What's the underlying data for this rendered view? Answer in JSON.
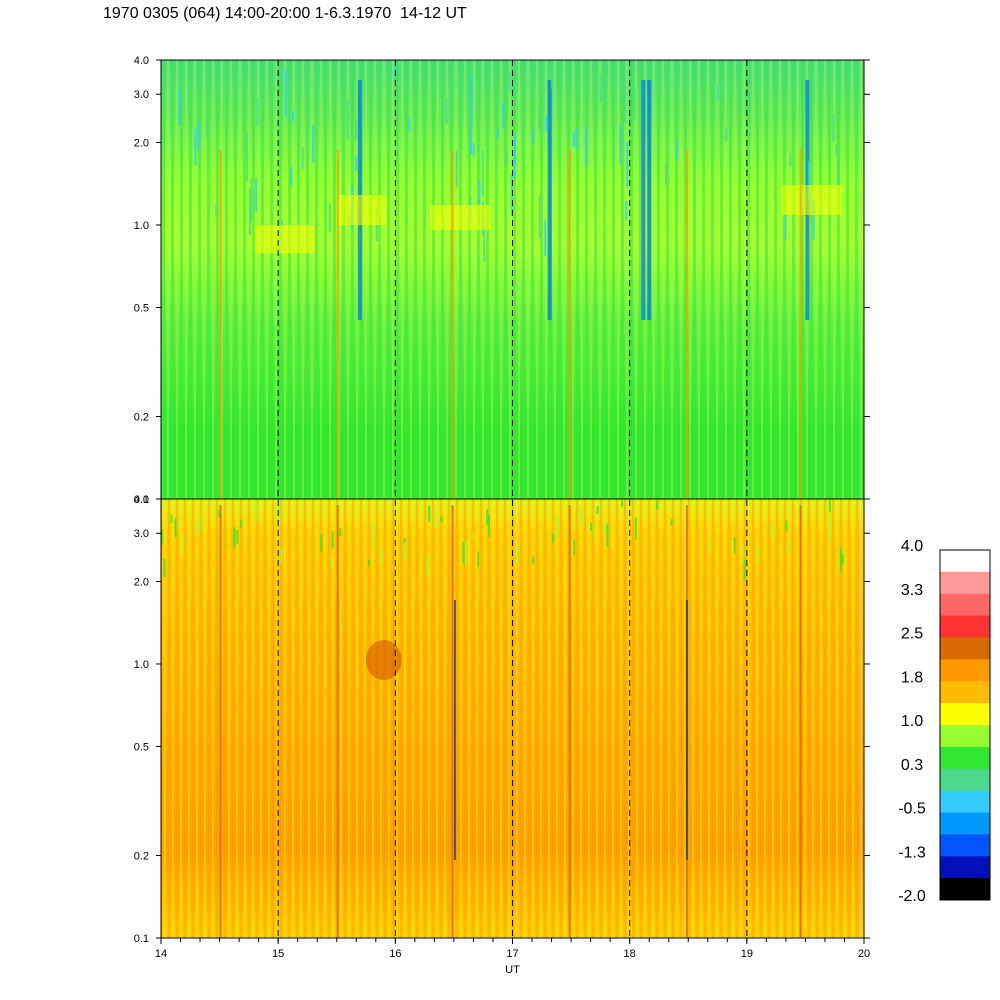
{
  "title": "1970 0305 (064) 14:00-20:00 1-6.3.1970  14-12 UT",
  "chart_data": [
    {
      "type": "heatmap",
      "panel": "top",
      "x_range": [
        14,
        20
      ],
      "y_range": [
        0.1,
        4.0
      ],
      "y_scale": "log",
      "y_ticks": [
        0.1,
        0.2,
        0.5,
        1.0,
        2.0,
        3.0,
        4.0
      ],
      "y_tick_labels": [
        "0.1",
        "0.2",
        "0.5",
        "1.0",
        "2.0",
        "3.0",
        "4.0"
      ],
      "dominant_level": "0.3 to 1.0 (green / yellow-green)",
      "dashed_hour_lines": [
        15,
        16,
        17,
        18,
        19
      ]
    },
    {
      "type": "heatmap",
      "panel": "bottom",
      "x_range": [
        14,
        20
      ],
      "y_range": [
        0.1,
        4.0
      ],
      "y_scale": "log",
      "y_ticks": [
        0.1,
        0.2,
        0.5,
        1.0,
        2.0,
        3.0,
        4.0
      ],
      "y_tick_labels": [
        "0.1",
        "0.2",
        "0.5",
        "1.0",
        "2.0",
        "3.0",
        "4.0"
      ],
      "x_ticks": [
        14,
        15,
        16,
        17,
        18,
        19,
        20
      ],
      "x_tick_labels": [
        "14",
        "15",
        "16",
        "17",
        "18",
        "19",
        "20"
      ],
      "xlabel": "UT",
      "dominant_level": "1.0 to 2.5 (yellow / orange)",
      "dashed_hour_lines": [
        15,
        16,
        17,
        18,
        19
      ]
    }
  ],
  "colorbar": {
    "labels": [
      "4.0",
      "3.3",
      "2.5",
      "1.8",
      "1.0",
      "0.3",
      "-0.5",
      "-1.3",
      "-2.0"
    ],
    "range": [
      -2.0,
      4.0
    ],
    "colors_top_to_bottom": [
      "#ffffff",
      "#ff9999",
      "#ff6666",
      "#ff3333",
      "#d96a00",
      "#ff9900",
      "#ffbb00",
      "#ffff00",
      "#99ff33",
      "#33e633",
      "#4dd98c",
      "#33ccff",
      "#0099ff",
      "#0055ff",
      "#0011bb",
      "#000000"
    ]
  }
}
